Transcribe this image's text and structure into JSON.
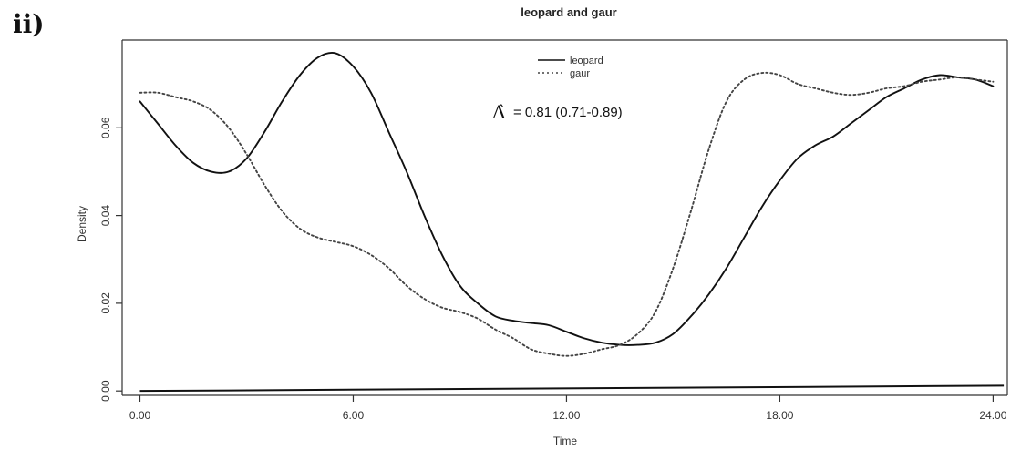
{
  "panel_label": "ii)",
  "chart_data": {
    "type": "line",
    "title": "leopard and gaur",
    "xlabel": "Time",
    "ylabel": "Density",
    "xlim": [
      -0.5,
      24.4
    ],
    "ylim": [
      -0.001,
      0.08
    ],
    "x_ticks": [
      0,
      6,
      12,
      18,
      24
    ],
    "x_tick_labels": [
      "0.00",
      "6.00",
      "12.00",
      "18.00",
      "24.00"
    ],
    "y_ticks": [
      0.0,
      0.02,
      0.04,
      0.06
    ],
    "y_tick_labels": [
      "0.00",
      "0.02",
      "0.04",
      "0.06"
    ],
    "grid": false,
    "legend_position": "top-center",
    "annotation": {
      "symbol": "Δ̂",
      "text": "= 0.81 (0.71-0.89)"
    },
    "series": [
      {
        "name": "leopard",
        "style": "solid",
        "color": "#111111",
        "x": [
          0,
          0.5,
          1,
          1.5,
          2,
          2.5,
          3,
          3.5,
          4,
          4.5,
          5,
          5.5,
          6,
          6.5,
          7,
          7.5,
          8,
          8.5,
          9,
          9.5,
          10,
          10.5,
          11,
          11.5,
          12,
          12.5,
          13,
          13.5,
          14,
          14.5,
          15,
          15.5,
          16,
          16.5,
          17,
          17.5,
          18,
          18.5,
          19,
          19.5,
          20,
          20.5,
          21,
          21.5,
          22,
          22.5,
          23,
          23.5,
          24
        ],
        "y": [
          0.066,
          0.061,
          0.056,
          0.052,
          0.05,
          0.05,
          0.053,
          0.059,
          0.066,
          0.072,
          0.076,
          0.077,
          0.074,
          0.068,
          0.059,
          0.05,
          0.04,
          0.031,
          0.024,
          0.02,
          0.017,
          0.016,
          0.0155,
          0.015,
          0.0135,
          0.012,
          0.011,
          0.0105,
          0.0105,
          0.011,
          0.013,
          0.017,
          0.022,
          0.028,
          0.035,
          0.042,
          0.048,
          0.053,
          0.056,
          0.058,
          0.061,
          0.064,
          0.067,
          0.069,
          0.071,
          0.072,
          0.0715,
          0.071,
          0.0695
        ]
      },
      {
        "name": "gaur",
        "style": "dotted",
        "color": "#444444",
        "x": [
          0,
          0.5,
          1,
          1.5,
          2,
          2.5,
          3,
          3.5,
          4,
          4.5,
          5,
          5.5,
          6,
          6.5,
          7,
          7.5,
          8,
          8.5,
          9,
          9.5,
          10,
          10.5,
          11,
          11.5,
          12,
          12.5,
          13,
          13.5,
          14,
          14.5,
          15,
          15.5,
          16,
          16.5,
          17,
          17.5,
          18,
          18.5,
          19,
          19.5,
          20,
          20.5,
          21,
          21.5,
          22,
          22.5,
          23,
          23.5,
          24
        ],
        "y": [
          0.068,
          0.068,
          0.067,
          0.066,
          0.064,
          0.06,
          0.054,
          0.047,
          0.041,
          0.037,
          0.035,
          0.034,
          0.033,
          0.031,
          0.028,
          0.024,
          0.021,
          0.019,
          0.018,
          0.0165,
          0.014,
          0.012,
          0.0095,
          0.0085,
          0.008,
          0.0085,
          0.0095,
          0.0105,
          0.013,
          0.018,
          0.028,
          0.041,
          0.055,
          0.066,
          0.071,
          0.0725,
          0.072,
          0.07,
          0.069,
          0.068,
          0.0675,
          0.068,
          0.069,
          0.0695,
          0.0705,
          0.071,
          0.0715,
          0.071,
          0.0705
        ]
      }
    ]
  }
}
